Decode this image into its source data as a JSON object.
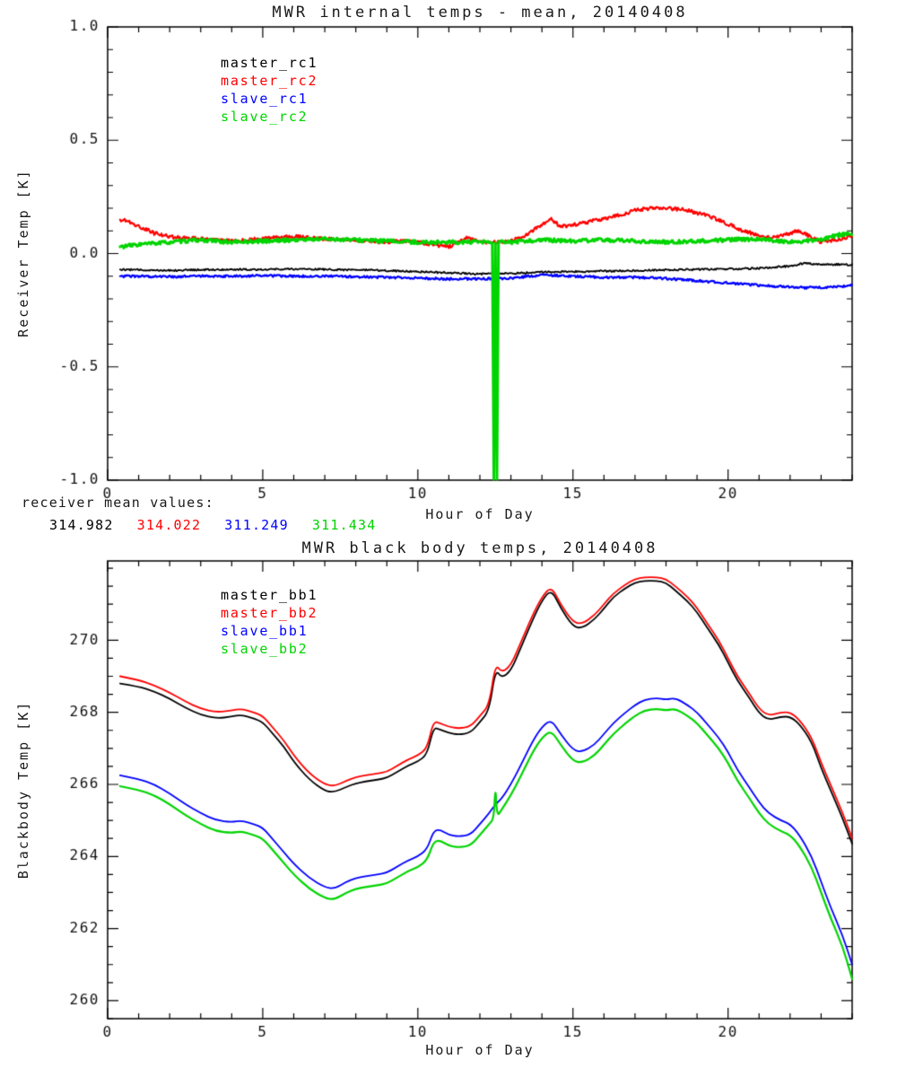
{
  "colors": {
    "black": "#000000",
    "red": "#ff0000",
    "blue": "#0000ff",
    "green": "#00d400",
    "text": "#1a1a1a"
  },
  "means": {
    "label": "receiver mean values:",
    "values": [
      {
        "text": "314.982",
        "color": "#000000"
      },
      {
        "text": "314.022",
        "color": "#ff0000"
      },
      {
        "text": "311.249",
        "color": "#0000ff"
      },
      {
        "text": "311.434",
        "color": "#00d400"
      }
    ]
  },
  "chart_data": [
    {
      "type": "line",
      "title": "MWR internal temps - mean, 20140408",
      "xlabel": "Hour of Day",
      "ylabel": "Receiver Temp [K]",
      "xlim": [
        0,
        24
      ],
      "ylim": [
        -1.0,
        1.0
      ],
      "xticks": [
        0,
        5,
        10,
        15,
        20
      ],
      "xtick_labels": [
        "0",
        "5",
        "10",
        "15",
        "20"
      ],
      "xminor": 1,
      "yticks": [
        -1.0,
        -0.5,
        0.0,
        0.5,
        1.0
      ],
      "ytick_labels": [
        "-1.0",
        "-0.5",
        "0.0",
        "0.5",
        "1.0"
      ],
      "yminor": 0.1,
      "grid": false,
      "legend_position": "top-left-inside",
      "series": [
        {
          "name": "master_rc1",
          "color": "#000000",
          "width": 1.8,
          "noise": 0.004,
          "x": [
            0.4,
            1,
            2,
            3,
            4,
            5,
            6,
            7,
            8,
            9,
            10,
            11,
            12,
            13,
            14,
            15,
            16,
            17,
            18,
            19,
            20,
            21,
            22,
            22.5,
            23,
            23.5,
            24
          ],
          "y": [
            -0.07,
            -0.072,
            -0.074,
            -0.072,
            -0.07,
            -0.07,
            -0.068,
            -0.07,
            -0.072,
            -0.075,
            -0.08,
            -0.085,
            -0.09,
            -0.088,
            -0.082,
            -0.08,
            -0.078,
            -0.075,
            -0.072,
            -0.07,
            -0.068,
            -0.065,
            -0.055,
            -0.042,
            -0.05,
            -0.048,
            -0.05
          ]
        },
        {
          "name": "master_rc2",
          "color": "#ff0000",
          "width": 2.2,
          "noise": 0.008,
          "x": [
            0.4,
            0.7,
            1,
            1.5,
            2,
            2.5,
            3,
            3.5,
            4,
            4.5,
            5,
            5.5,
            6,
            6.5,
            7,
            7.5,
            8,
            8.5,
            9,
            9.5,
            10,
            10.5,
            11,
            11.3,
            11.6,
            12,
            12.5,
            13,
            13.5,
            14,
            14.3,
            14.6,
            15,
            15.5,
            16,
            16.5,
            17,
            17.5,
            18,
            18.5,
            19,
            19.5,
            20,
            20.5,
            21,
            21.5,
            22,
            22.3,
            22.7,
            23,
            23.5,
            24
          ],
          "y": [
            0.15,
            0.14,
            0.12,
            0.09,
            0.075,
            0.07,
            0.065,
            0.06,
            0.055,
            0.06,
            0.065,
            0.07,
            0.075,
            0.07,
            0.065,
            0.06,
            0.06,
            0.055,
            0.05,
            0.055,
            0.05,
            0.04,
            0.03,
            0.05,
            0.07,
            0.05,
            0.05,
            0.055,
            0.08,
            0.13,
            0.15,
            0.12,
            0.125,
            0.14,
            0.155,
            0.17,
            0.19,
            0.2,
            0.2,
            0.195,
            0.18,
            0.16,
            0.13,
            0.1,
            0.08,
            0.07,
            0.09,
            0.1,
            0.07,
            0.05,
            0.06,
            0.08
          ]
        },
        {
          "name": "slave_rc1",
          "color": "#0000ff",
          "width": 2.2,
          "noise": 0.005,
          "x": [
            0.4,
            1,
            2,
            3,
            4,
            5,
            6,
            7,
            8,
            9,
            10,
            11,
            12,
            13,
            14,
            15,
            16,
            17,
            18,
            19,
            20,
            21,
            22,
            22.5,
            23,
            23.5,
            24
          ],
          "y": [
            -0.1,
            -0.1,
            -0.102,
            -0.1,
            -0.1,
            -0.098,
            -0.1,
            -0.1,
            -0.102,
            -0.105,
            -0.108,
            -0.112,
            -0.112,
            -0.108,
            -0.095,
            -0.1,
            -0.105,
            -0.105,
            -0.11,
            -0.12,
            -0.13,
            -0.14,
            -0.148,
            -0.15,
            -0.15,
            -0.148,
            -0.14
          ]
        },
        {
          "name": "slave_rc2",
          "color": "#00d400",
          "width": 3,
          "noise": 0.008,
          "x": [
            0.4,
            1,
            2,
            3,
            4,
            5,
            6,
            7,
            8,
            9,
            10,
            11,
            12,
            12.4,
            12.45,
            12.5,
            12.55,
            12.6,
            13,
            14,
            15,
            16,
            17,
            18,
            19,
            20,
            21,
            22,
            23,
            23.5,
            24
          ],
          "y": [
            0.03,
            0.04,
            0.05,
            0.06,
            0.05,
            0.055,
            0.06,
            0.065,
            0.06,
            0.055,
            0.05,
            0.05,
            0.05,
            0.05,
            -1.0,
            0.05,
            -1.0,
            0.05,
            0.05,
            0.06,
            0.055,
            0.06,
            0.055,
            0.05,
            0.055,
            0.06,
            0.065,
            0.05,
            0.06,
            0.08,
            0.09
          ]
        }
      ]
    },
    {
      "type": "line",
      "title": "MWR black body temps, 20140408",
      "xlabel": "Hour of Day",
      "ylabel": "Blackbody Temp [K]",
      "xlim": [
        0,
        24
      ],
      "ylim": [
        259.5,
        272.2
      ],
      "xticks": [
        0,
        5,
        10,
        15,
        20
      ],
      "xtick_labels": [
        "0",
        "5",
        "10",
        "15",
        "20"
      ],
      "xminor": 1,
      "yticks": [
        260,
        262,
        264,
        266,
        268,
        270
      ],
      "ytick_labels": [
        "260",
        "262",
        "264",
        "266",
        "268",
        "270"
      ],
      "yminor": 0.5,
      "grid": false,
      "legend_position": "top-left-inside",
      "series": [
        {
          "name": "master_bb1",
          "color": "#000000",
          "width": 1.8,
          "noise": 0,
          "x": [
            0.4,
            1,
            1.5,
            2,
            2.5,
            3,
            3.5,
            4,
            4.3,
            4.7,
            5,
            5.3,
            5.7,
            6,
            6.5,
            7,
            7.3,
            7.7,
            8,
            8.3,
            8.7,
            9,
            9.3,
            9.7,
            10,
            10.3,
            10.5,
            10.7,
            11,
            11.3,
            11.7,
            12,
            12.3,
            12.5,
            12.7,
            13,
            13.3,
            13.7,
            14,
            14.3,
            14.6,
            15,
            15.3,
            15.7,
            16,
            16.3,
            16.7,
            17,
            17.3,
            17.7,
            18,
            18.3,
            18.7,
            19,
            19.3,
            19.7,
            20,
            20.3,
            20.7,
            21,
            21.3,
            21.7,
            22,
            22.3,
            22.7,
            23,
            23.3,
            23.7,
            24
          ],
          "y": [
            268.8,
            268.72,
            268.58,
            268.38,
            268.13,
            267.93,
            267.83,
            267.88,
            267.93,
            267.83,
            267.73,
            267.43,
            267.03,
            266.63,
            266.13,
            265.82,
            265.78,
            265.93,
            266.03,
            266.08,
            266.13,
            266.18,
            266.33,
            266.53,
            266.63,
            266.83,
            267.58,
            267.53,
            267.43,
            267.38,
            267.43,
            267.73,
            268.05,
            269.2,
            268.95,
            269.15,
            269.75,
            270.57,
            271.1,
            271.42,
            270.9,
            270.38,
            270.33,
            270.58,
            270.88,
            271.2,
            271.45,
            271.6,
            271.65,
            271.65,
            271.6,
            271.38,
            271.08,
            270.78,
            270.38,
            269.88,
            269.38,
            268.88,
            268.38,
            267.98,
            267.78,
            267.88,
            267.88,
            267.68,
            267.18,
            266.45,
            265.85,
            265.05,
            264.35
          ]
        },
        {
          "name": "master_bb2",
          "color": "#ff0000",
          "width": 1.8,
          "noise": 0,
          "x": [
            0.4,
            1,
            1.5,
            2,
            2.5,
            3,
            3.5,
            4,
            4.3,
            4.7,
            5,
            5.3,
            5.7,
            6,
            6.5,
            7,
            7.3,
            7.7,
            8,
            8.3,
            8.7,
            9,
            9.3,
            9.7,
            10,
            10.3,
            10.5,
            10.7,
            11,
            11.3,
            11.7,
            12,
            12.3,
            12.5,
            12.7,
            13,
            13.3,
            13.7,
            14,
            14.3,
            14.6,
            15,
            15.3,
            15.7,
            16,
            16.3,
            16.7,
            17,
            17.3,
            17.7,
            18,
            18.3,
            18.7,
            19,
            19.3,
            19.7,
            20,
            20.3,
            20.7,
            21,
            21.3,
            21.7,
            22,
            22.3,
            22.7,
            23,
            23.3,
            23.7,
            24
          ],
          "y": [
            269.0,
            268.9,
            268.75,
            268.55,
            268.3,
            268.1,
            268.0,
            268.05,
            268.1,
            268.0,
            267.9,
            267.6,
            267.2,
            266.8,
            266.3,
            266.0,
            265.95,
            266.1,
            266.2,
            266.25,
            266.3,
            266.35,
            266.5,
            266.7,
            266.8,
            267.0,
            267.75,
            267.7,
            267.6,
            267.55,
            267.6,
            267.9,
            268.2,
            269.35,
            269.1,
            269.3,
            269.9,
            270.7,
            271.2,
            271.5,
            271.0,
            270.5,
            270.45,
            270.7,
            271.0,
            271.3,
            271.55,
            271.7,
            271.75,
            271.75,
            271.7,
            271.5,
            271.2,
            270.9,
            270.5,
            270.0,
            269.5,
            269.0,
            268.5,
            268.1,
            267.9,
            268.0,
            268.0,
            267.8,
            267.3,
            266.6,
            266.0,
            265.2,
            264.5
          ]
        },
        {
          "name": "slave_bb1",
          "color": "#0000ff",
          "width": 1.8,
          "noise": 0,
          "x": [
            0.4,
            1,
            1.5,
            2,
            2.5,
            3,
            3.5,
            4,
            4.3,
            4.7,
            5,
            5.3,
            5.7,
            6,
            6.5,
            7,
            7.3,
            7.7,
            8,
            8.3,
            8.7,
            9,
            9.3,
            9.7,
            10,
            10.3,
            10.5,
            10.7,
            11,
            11.3,
            11.7,
            12,
            12.3,
            12.5,
            12.7,
            13,
            13.3,
            13.7,
            14,
            14.3,
            14.6,
            15,
            15.3,
            15.7,
            16,
            16.3,
            16.7,
            17,
            17.3,
            17.7,
            18,
            18.3,
            18.7,
            19,
            19.3,
            19.7,
            20,
            20.3,
            20.7,
            21,
            21.3,
            21.7,
            22,
            22.3,
            22.7,
            23,
            23.3,
            23.7,
            24
          ],
          "y": [
            266.25,
            266.15,
            266.0,
            265.75,
            265.45,
            265.2,
            265.0,
            264.95,
            265.0,
            264.9,
            264.8,
            264.5,
            264.1,
            263.8,
            263.4,
            263.15,
            263.1,
            263.3,
            263.4,
            263.45,
            263.5,
            263.55,
            263.7,
            263.9,
            264.0,
            264.2,
            264.7,
            264.75,
            264.6,
            264.55,
            264.6,
            264.9,
            265.2,
            265.45,
            265.6,
            266.0,
            266.5,
            267.2,
            267.6,
            267.8,
            267.4,
            266.95,
            266.9,
            267.1,
            267.4,
            267.7,
            268.0,
            268.2,
            268.35,
            268.4,
            268.35,
            268.4,
            268.2,
            268.0,
            267.7,
            267.3,
            266.9,
            266.4,
            265.9,
            265.5,
            265.2,
            265.0,
            264.9,
            264.6,
            264.0,
            263.3,
            262.6,
            261.8,
            261.0
          ]
        },
        {
          "name": "slave_bb2",
          "color": "#00d400",
          "width": 2.2,
          "noise": 0,
          "x": [
            0.4,
            1,
            1.5,
            2,
            2.5,
            3,
            3.5,
            4,
            4.3,
            4.7,
            5,
            5.3,
            5.7,
            6,
            6.5,
            7,
            7.3,
            7.7,
            8,
            8.3,
            8.7,
            9,
            9.3,
            9.7,
            10,
            10.3,
            10.5,
            10.7,
            11,
            11.3,
            11.7,
            12,
            12.3,
            12.45,
            12.5,
            12.55,
            12.7,
            13,
            13.3,
            13.7,
            14,
            14.3,
            14.6,
            15,
            15.3,
            15.7,
            16,
            16.3,
            16.7,
            17,
            17.3,
            17.7,
            18,
            18.3,
            18.7,
            19,
            19.3,
            19.7,
            20,
            20.3,
            20.7,
            21,
            21.3,
            21.7,
            22,
            22.3,
            22.7,
            23,
            23.3,
            23.7,
            24
          ],
          "y": [
            265.95,
            265.85,
            265.7,
            265.45,
            265.15,
            264.9,
            264.7,
            264.65,
            264.7,
            264.6,
            264.5,
            264.2,
            263.8,
            263.5,
            263.1,
            262.85,
            262.8,
            263.0,
            263.1,
            263.15,
            263.2,
            263.25,
            263.4,
            263.6,
            263.7,
            263.9,
            264.4,
            264.45,
            264.3,
            264.25,
            264.3,
            264.6,
            264.9,
            265.05,
            266.0,
            265.1,
            265.3,
            265.7,
            266.2,
            266.9,
            267.3,
            267.5,
            267.1,
            266.65,
            266.6,
            266.8,
            267.1,
            267.4,
            267.7,
            267.9,
            268.05,
            268.1,
            268.05,
            268.1,
            267.9,
            267.7,
            267.4,
            267.0,
            266.6,
            266.1,
            265.6,
            265.2,
            264.9,
            264.7,
            264.6,
            264.3,
            263.7,
            263.0,
            262.3,
            261.5,
            260.6
          ]
        }
      ]
    }
  ]
}
